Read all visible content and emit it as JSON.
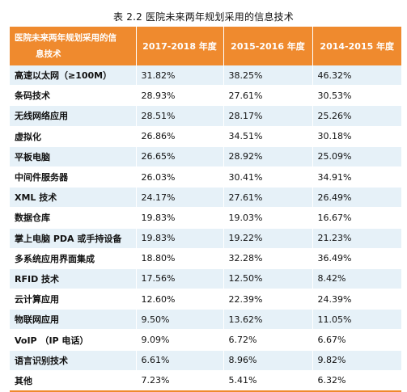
{
  "caption": "表 2.2  医院未来两年规划采用的信息技术",
  "header": {
    "col0_line1": "医院未来两年规划采用的信",
    "col0_line2": "息技术",
    "col1": "2017-2018 年度",
    "col2": "2015-2016 年度",
    "col3": "2014-2015 年度"
  },
  "rows": [
    {
      "name": "高速以太网（≥100M）",
      "v1": "31.82%",
      "v2": "38.25%",
      "v3": "46.32%"
    },
    {
      "name": "条码技术",
      "v1": "28.93%",
      "v2": "27.61%",
      "v3": "30.53%"
    },
    {
      "name": "无线网络应用",
      "v1": "28.51%",
      "v2": "28.17%",
      "v3": "25.26%"
    },
    {
      "name": "虚拟化",
      "v1": "26.86%",
      "v2": "34.51%",
      "v3": "30.18%"
    },
    {
      "name": "平板电脑",
      "v1": "26.65%",
      "v2": "28.92%",
      "v3": "25.09%"
    },
    {
      "name": "中间件服务器",
      "v1": "26.03%",
      "v2": "30.41%",
      "v3": "34.91%"
    },
    {
      "name": "XML 技术",
      "v1": "24.17%",
      "v2": "27.61%",
      "v3": "26.49%"
    },
    {
      "name": "数据仓库",
      "v1": "19.83%",
      "v2": "19.03%",
      "v3": "16.67%"
    },
    {
      "name": "掌上电脑 PDA 或手持设备",
      "v1": "19.83%",
      "v2": "19.22%",
      "v3": "21.23%"
    },
    {
      "name": "多系统应用界面集成",
      "v1": "18.80%",
      "v2": "32.28%",
      "v3": "36.49%"
    },
    {
      "name": "RFID 技术",
      "v1": "17.56%",
      "v2": "12.50%",
      "v3": "8.42%"
    },
    {
      "name": "云计算应用",
      "v1": "12.60%",
      "v2": "22.39%",
      "v3": "24.39%"
    },
    {
      "name": "物联网应用",
      "v1": "9.50%",
      "v2": "13.62%",
      "v3": "11.05%"
    },
    {
      "name": "VoIP （IP 电话）",
      "v1": "9.09%",
      "v2": "6.72%",
      "v3": "6.67%"
    },
    {
      "name": "语言识别技术",
      "v1": "6.61%",
      "v2": "8.96%",
      "v3": "9.82%"
    },
    {
      "name": "其他",
      "v1": "7.23%",
      "v2": "5.41%",
      "v3": "6.32%"
    }
  ],
  "colors": {
    "header_bg": "#ef8a2e",
    "header_text": "#ffffff",
    "stripe": "#e6f1f8"
  }
}
